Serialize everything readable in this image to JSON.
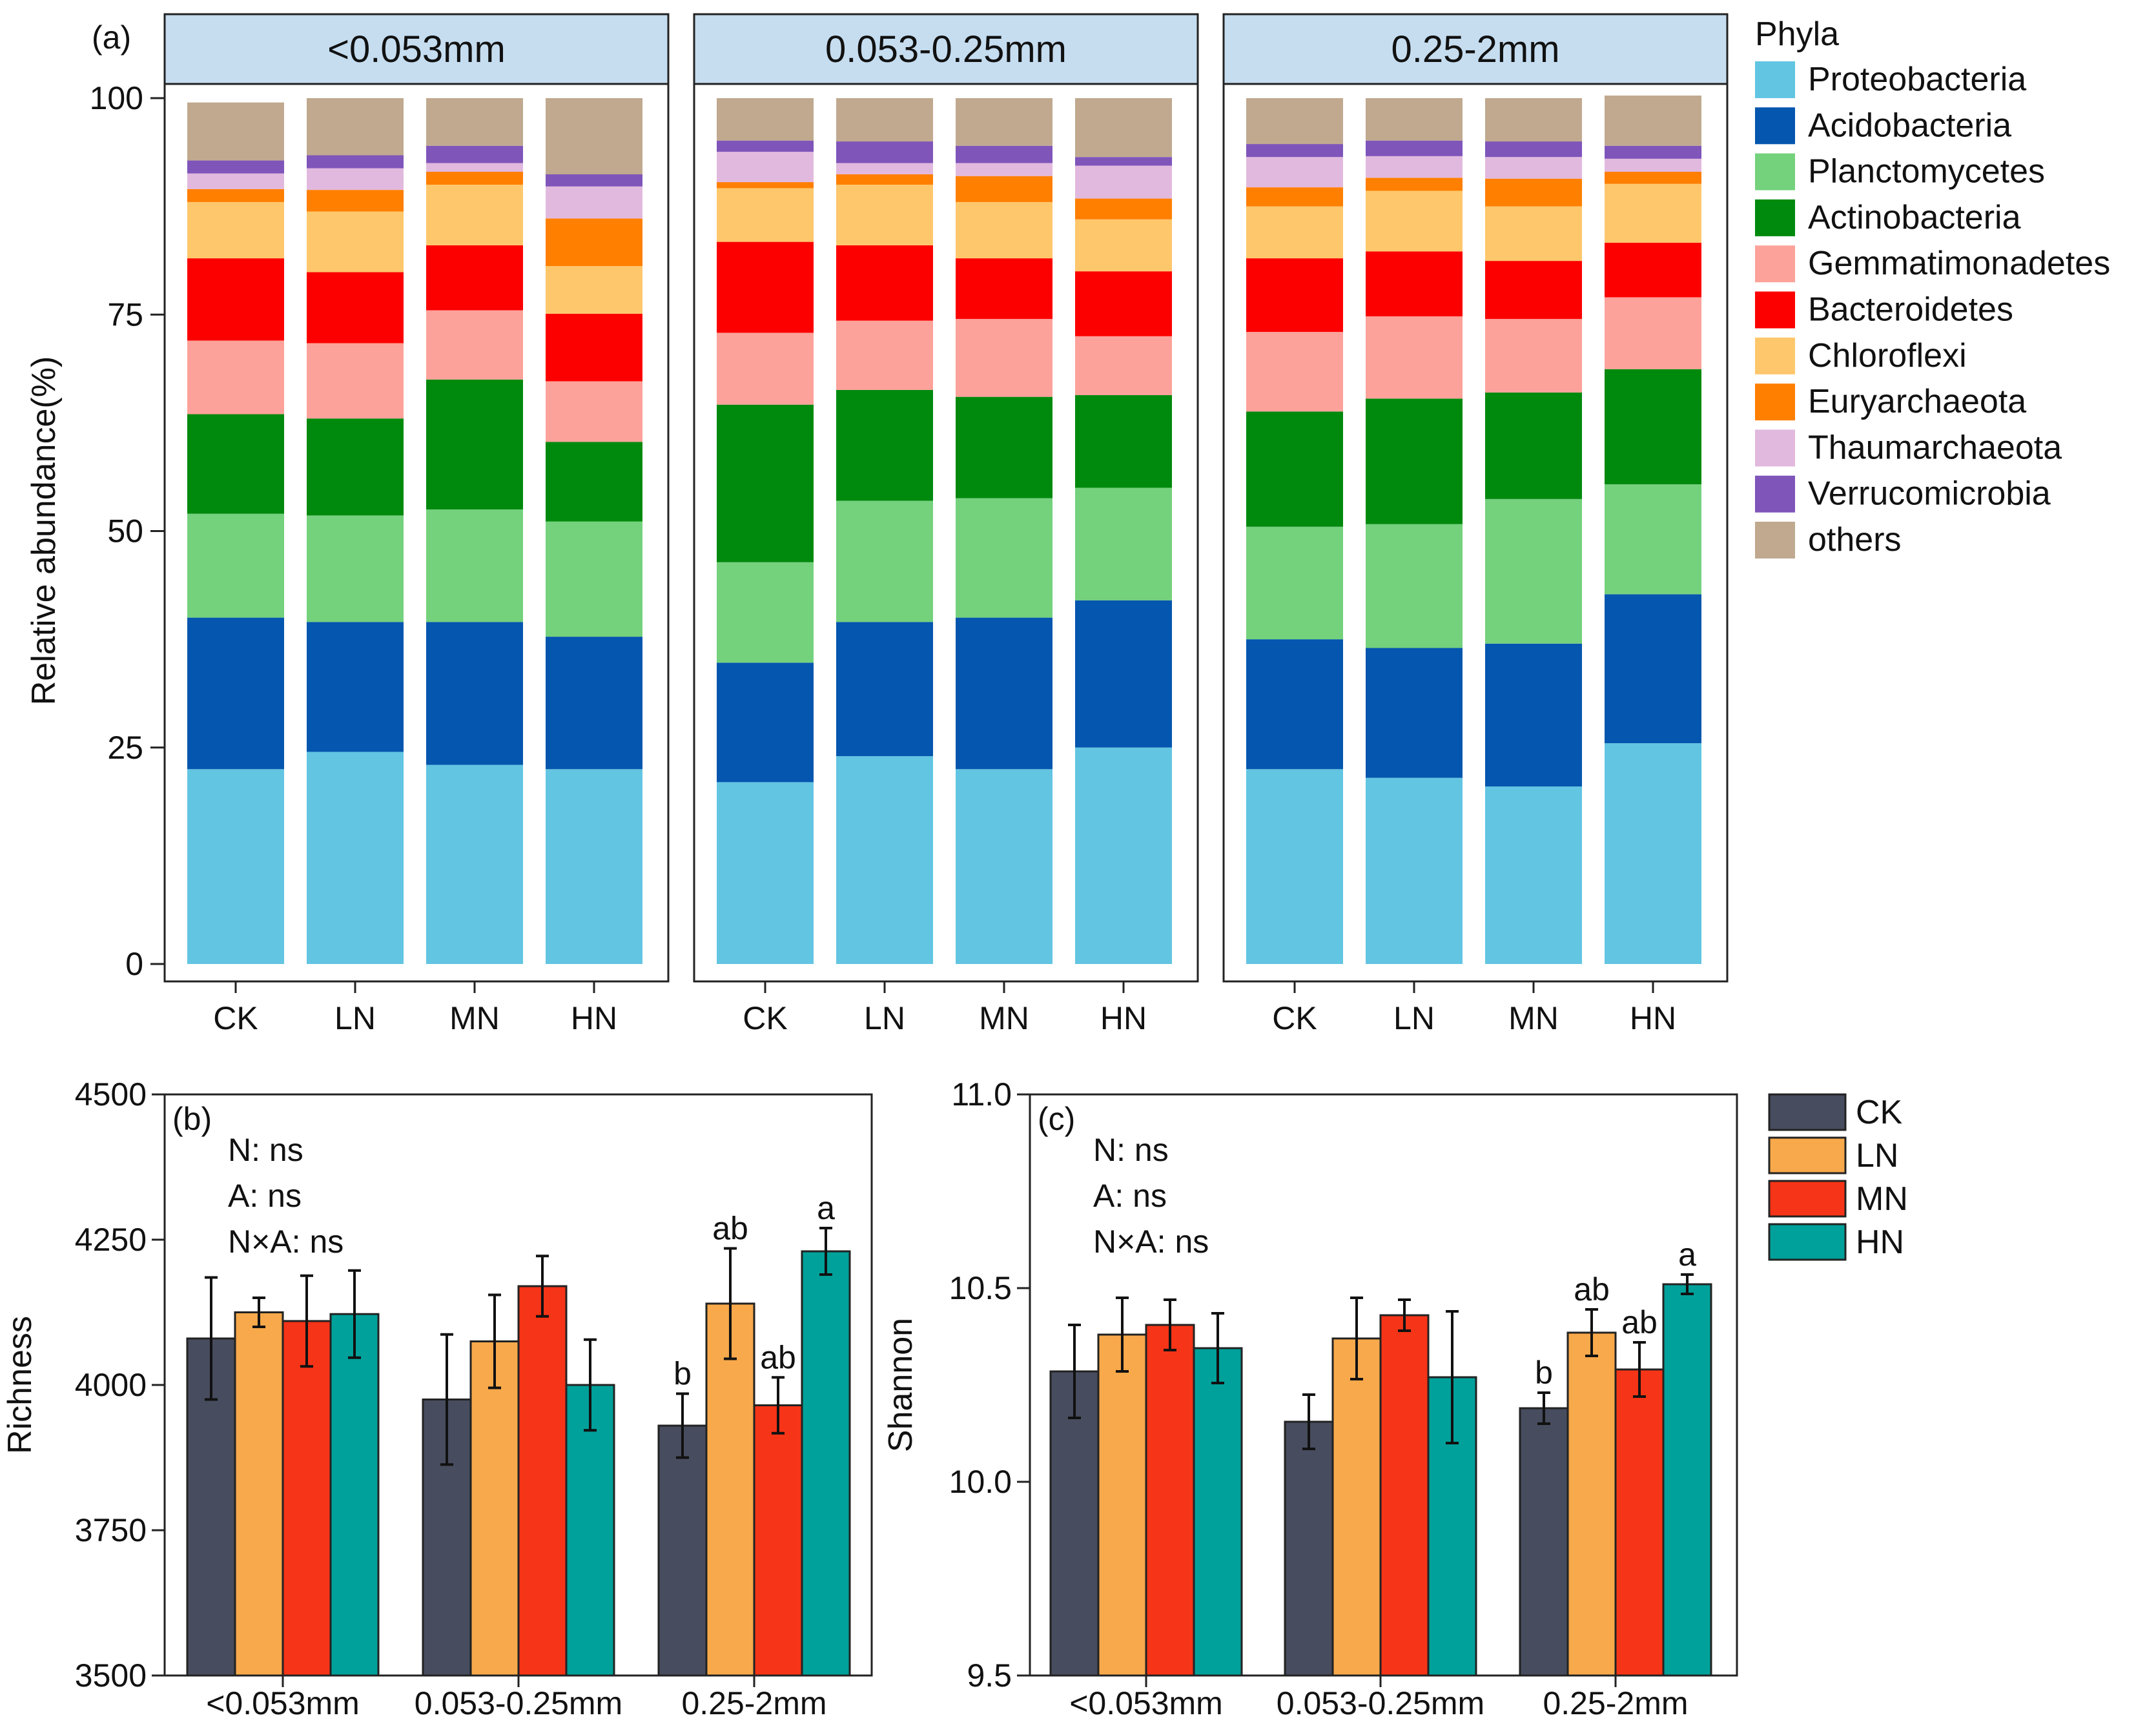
{
  "chart_data": [
    {
      "id": "a",
      "type": "bar",
      "stacked": true,
      "panel_label": "(a)",
      "ylabel": "Relative abundance(%)",
      "ylim": [
        0,
        100
      ],
      "yticks": [
        0,
        25,
        50,
        75,
        100
      ],
      "facets": [
        "<0.053mm",
        "0.053-0.25mm",
        "0.25-2mm"
      ],
      "categories": [
        "CK",
        "LN",
        "MN",
        "HN"
      ],
      "legend": {
        "title": "Phyla",
        "placement": "right"
      },
      "series": [
        {
          "name": "Proteobacteria",
          "color": "#62C5E2",
          "values": [
            [
              22.5,
              24.5,
              23.0,
              22.5
            ],
            [
              21.0,
              24.0,
              22.5,
              25.0
            ],
            [
              22.5,
              21.5,
              20.5,
              25.5
            ]
          ]
        },
        {
          "name": "Acidobacteria",
          "color": "#0556AE",
          "values": [
            [
              17.5,
              15.0,
              16.5,
              15.3
            ],
            [
              13.8,
              15.5,
              17.5,
              17.0
            ],
            [
              15.0,
              15.0,
              16.5,
              17.2
            ]
          ]
        },
        {
          "name": "Planctomycetes",
          "color": "#74D17C",
          "values": [
            [
              12.0,
              12.3,
              13.0,
              13.3
            ],
            [
              11.6,
              14.0,
              13.8,
              13.0
            ],
            [
              13.0,
              14.3,
              16.7,
              12.7
            ]
          ]
        },
        {
          "name": "Actinobacteria",
          "color": "#008A0D",
          "values": [
            [
              11.5,
              11.2,
              15.0,
              9.2
            ],
            [
              18.2,
              12.8,
              11.7,
              10.7
            ],
            [
              13.3,
              14.5,
              12.3,
              13.3
            ]
          ]
        },
        {
          "name": "Gemmatimonadetes",
          "color": "#FCA29A",
          "values": [
            [
              8.5,
              8.7,
              8.0,
              7.0
            ],
            [
              8.3,
              8.0,
              9.0,
              6.8
            ],
            [
              9.2,
              9.5,
              8.5,
              8.3
            ]
          ]
        },
        {
          "name": "Bacteroidetes",
          "color": "#FC0000",
          "values": [
            [
              9.5,
              8.2,
              7.5,
              7.8
            ],
            [
              10.5,
              8.7,
              7.0,
              7.5
            ],
            [
              8.5,
              7.5,
              6.7,
              6.3
            ]
          ]
        },
        {
          "name": "Chloroflexi",
          "color": "#FEC76C",
          "values": [
            [
              6.5,
              7.0,
              7.0,
              5.5
            ],
            [
              6.2,
              7.0,
              6.5,
              6.0
            ],
            [
              6.0,
              7.0,
              6.3,
              6.8
            ]
          ]
        },
        {
          "name": "Euryarchaeota",
          "color": "#FF7F00",
          "values": [
            [
              1.5,
              2.5,
              1.5,
              5.5
            ],
            [
              0.7,
              1.2,
              3.0,
              2.4
            ],
            [
              2.2,
              1.5,
              3.2,
              1.4
            ]
          ]
        },
        {
          "name": "Thaumarchaeota",
          "color": "#E2B9DE",
          "values": [
            [
              1.8,
              2.5,
              1.0,
              3.7
            ],
            [
              3.5,
              1.3,
              1.5,
              3.8
            ],
            [
              3.5,
              2.5,
              2.5,
              1.5
            ]
          ]
        },
        {
          "name": "Verrucomicrobia",
          "color": "#7F55BA",
          "values": [
            [
              1.5,
              1.5,
              2.0,
              1.4
            ],
            [
              1.3,
              2.5,
              2.0,
              1.0
            ],
            [
              1.5,
              1.8,
              1.8,
              1.5
            ]
          ]
        },
        {
          "name": "others",
          "color": "#C0A98F",
          "values": [
            [
              6.7,
              6.6,
              5.5,
              8.8
            ],
            [
              4.9,
              5.0,
              5.5,
              6.8
            ],
            [
              5.3,
              4.9,
              5.0,
              5.8
            ]
          ]
        }
      ]
    },
    {
      "id": "b",
      "type": "bar",
      "panel_label": "(b)",
      "ylabel": "Richness",
      "ylim": [
        3500,
        4500
      ],
      "yticks": [
        3500,
        3750,
        4000,
        4250,
        4500
      ],
      "categories": [
        "<0.053mm",
        "0.053-0.25mm",
        "0.25-2mm"
      ],
      "stats": [
        "N: ns",
        "A: ns",
        "N×A: ns"
      ],
      "series": [
        {
          "name": "CK",
          "color": "#474C5E",
          "values": [
            4080,
            3975,
            3930
          ],
          "errors": [
            105,
            112,
            55
          ],
          "letters": [
            "",
            "",
            "b"
          ]
        },
        {
          "name": "LN",
          "color": "#F8A94B",
          "values": [
            4125,
            4075,
            4140
          ],
          "errors": [
            25,
            80,
            95
          ],
          "letters": [
            "",
            "",
            "ab"
          ]
        },
        {
          "name": "MN",
          "color": "#F63417",
          "values": [
            4110,
            4170,
            3965
          ],
          "errors": [
            78,
            52,
            48
          ],
          "letters": [
            "",
            "",
            "ab"
          ]
        },
        {
          "name": "HN",
          "color": "#00A19A",
          "values": [
            4122,
            4000,
            4230
          ],
          "errors": [
            75,
            78,
            40
          ],
          "letters": [
            "",
            "",
            "a"
          ]
        }
      ]
    },
    {
      "id": "c",
      "type": "bar",
      "panel_label": "(c)",
      "ylabel": "Shannon",
      "ylim": [
        9.5,
        11.0
      ],
      "yticks": [
        "9.5",
        "10.0",
        "10.5",
        "11.0"
      ],
      "categories": [
        "<0.053mm",
        "0.053-0.25mm",
        "0.25-2mm"
      ],
      "stats": [
        "N: ns",
        "A: ns",
        "N×A: ns"
      ],
      "legend": {
        "placement": "right",
        "entries": [
          "CK",
          "LN",
          "MN",
          "HN"
        ]
      },
      "series": [
        {
          "name": "CK",
          "color": "#474C5E",
          "values": [
            10.285,
            10.155,
            10.19
          ],
          "errors": [
            0.12,
            0.07,
            0.04
          ],
          "letters": [
            "",
            "",
            "b"
          ]
        },
        {
          "name": "LN",
          "color": "#F8A94B",
          "values": [
            10.38,
            10.37,
            10.385
          ],
          "errors": [
            0.095,
            0.105,
            0.06
          ],
          "letters": [
            "",
            "",
            "ab"
          ]
        },
        {
          "name": "MN",
          "color": "#F63417",
          "values": [
            10.405,
            10.43,
            10.29
          ],
          "errors": [
            0.065,
            0.04,
            0.07
          ],
          "letters": [
            "",
            "",
            "ab"
          ]
        },
        {
          "name": "HN",
          "color": "#00A19A",
          "values": [
            10.345,
            10.27,
            10.51
          ],
          "errors": [
            0.09,
            0.17,
            0.025
          ],
          "letters": [
            "",
            "",
            "a"
          ]
        }
      ]
    }
  ]
}
